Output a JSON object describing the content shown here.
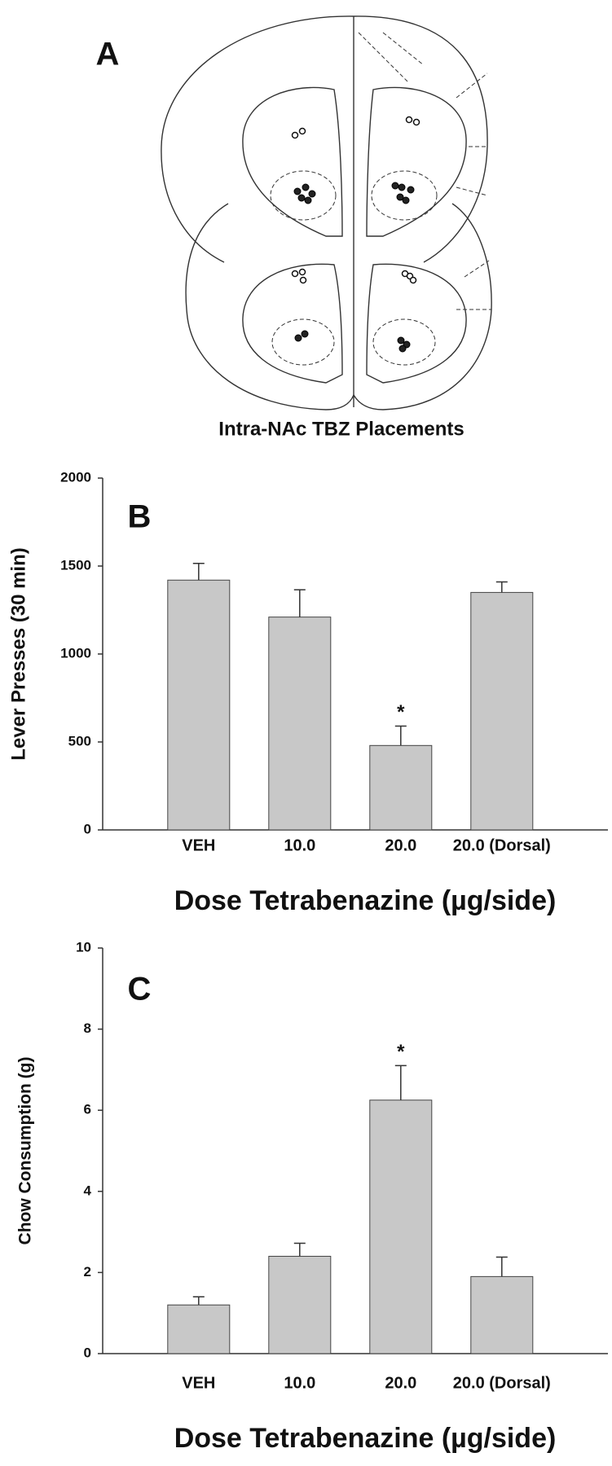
{
  "panel_a": {
    "label": "A",
    "caption": "Intra-NAc TBZ Placements"
  },
  "chart_data": [
    {
      "type": "bar",
      "panel_label": "B",
      "x_label": "Dose Tetrabenazine (µg/side)",
      "y_label": "Lever Presses (30 min)",
      "categories": [
        "VEH",
        "10.0",
        "20.0",
        "20.0 (Dorsal)"
      ],
      "values": [
        1420,
        1210,
        480,
        1350
      ],
      "errors": [
        95,
        155,
        110,
        60
      ],
      "color": "#c8c8c8",
      "ylim": [
        0,
        2000
      ],
      "yticks": [
        0,
        500,
        1000,
        1500,
        2000
      ],
      "annotations": [
        {
          "text": "*",
          "x": "20.0"
        }
      ]
    },
    {
      "type": "bar",
      "panel_label": "C",
      "x_label": "Dose Tetrabenazine (µg/side)",
      "y_label": "Chow Consumption (g)",
      "categories": [
        "VEH",
        "10.0",
        "20.0",
        "20.0 (Dorsal)"
      ],
      "values": [
        1.2,
        2.4,
        6.25,
        1.9
      ],
      "errors": [
        0.2,
        0.32,
        0.85,
        0.48
      ],
      "color": "#c8c8c8",
      "ylim": [
        0,
        10
      ],
      "yticks": [
        0,
        2,
        4,
        6,
        8,
        10
      ],
      "annotations": [
        {
          "text": "*",
          "x": "20.0"
        }
      ]
    }
  ]
}
